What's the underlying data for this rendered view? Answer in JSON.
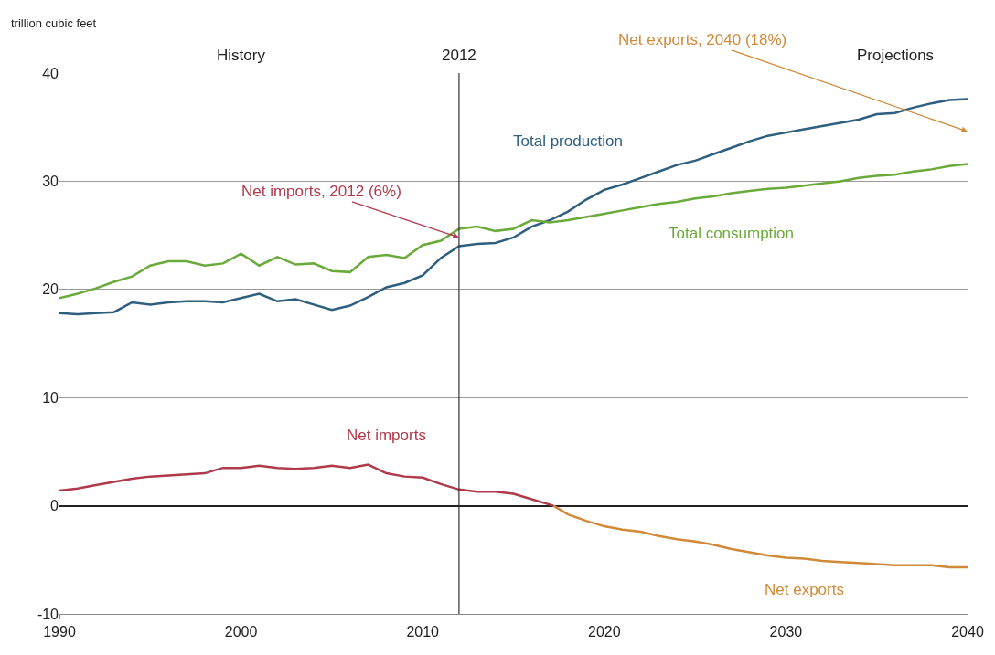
{
  "chart_data": {
    "type": "line",
    "ylabel": "trillion cubic feet",
    "xlim": [
      1990,
      2040
    ],
    "xticks": [
      1990,
      2000,
      2010,
      2020,
      2030,
      2040
    ],
    "ylim": [
      -10,
      40
    ],
    "yticks": [
      -10,
      0,
      10,
      20,
      30,
      40
    ],
    "grid": "y",
    "legend": false,
    "series": [
      {
        "name": "Total production",
        "color": "#2e5f7f",
        "x": [
          1990,
          1991,
          1992,
          1993,
          1994,
          1995,
          1996,
          1997,
          1998,
          1999,
          2000,
          2001,
          2002,
          2003,
          2004,
          2005,
          2006,
          2007,
          2008,
          2009,
          2010,
          2011,
          2012,
          2013,
          2014,
          2015,
          2016,
          2017,
          2018,
          2019,
          2020,
          2021,
          2022,
          2023,
          2024,
          2025,
          2026,
          2027,
          2028,
          2029,
          2030,
          2031,
          2032,
          2033,
          2034,
          2035,
          2036,
          2037,
          2038,
          2039,
          2040
        ],
        "values": [
          17.8,
          17.7,
          17.8,
          17.9,
          18.8,
          18.6,
          18.8,
          18.9,
          18.9,
          18.8,
          19.2,
          19.6,
          18.9,
          19.1,
          18.6,
          18.1,
          18.5,
          19.3,
          20.2,
          20.6,
          21.3,
          22.9,
          24.0,
          24.2,
          24.3,
          24.8,
          25.8,
          26.4,
          27.2,
          28.3,
          29.2,
          29.7,
          30.3,
          30.9,
          31.5,
          31.9,
          32.5,
          33.1,
          33.7,
          34.2,
          34.5,
          34.8,
          35.1,
          35.4,
          35.7,
          36.2,
          36.3,
          36.8,
          37.2,
          37.5,
          37.6
        ]
      },
      {
        "name": "Total consumption",
        "color": "#6aaa3a",
        "x": [
          1990,
          1991,
          1992,
          1993,
          1994,
          1995,
          1996,
          1997,
          1998,
          1999,
          2000,
          2001,
          2002,
          2003,
          2004,
          2005,
          2006,
          2007,
          2008,
          2009,
          2010,
          2011,
          2012,
          2013,
          2014,
          2015,
          2016,
          2017,
          2018,
          2019,
          2020,
          2021,
          2022,
          2023,
          2024,
          2025,
          2026,
          2027,
          2028,
          2029,
          2030,
          2031,
          2032,
          2033,
          2034,
          2035,
          2036,
          2037,
          2038,
          2039,
          2040
        ],
        "values": [
          19.2,
          19.6,
          20.1,
          20.7,
          21.2,
          22.2,
          22.6,
          22.6,
          22.2,
          22.4,
          23.3,
          22.2,
          23.0,
          22.3,
          22.4,
          21.7,
          21.6,
          23.0,
          23.2,
          22.9,
          24.1,
          24.5,
          25.6,
          25.8,
          25.4,
          25.6,
          26.4,
          26.2,
          26.4,
          26.7,
          27.0,
          27.3,
          27.6,
          27.9,
          28.1,
          28.4,
          28.6,
          28.9,
          29.1,
          29.3,
          29.4,
          29.6,
          29.8,
          30.0,
          30.3,
          30.5,
          30.6,
          30.9,
          31.1,
          31.4,
          31.6
        ]
      },
      {
        "name": "Net imports",
        "color": "#b03a4c",
        "x": [
          1990,
          1991,
          1992,
          1993,
          1994,
          1995,
          1996,
          1997,
          1998,
          1999,
          2000,
          2001,
          2002,
          2003,
          2004,
          2005,
          2006,
          2007,
          2008,
          2009,
          2010,
          2011,
          2012,
          2013,
          2014,
          2015,
          2016,
          2017,
          2017.2
        ],
        "values": [
          1.4,
          1.6,
          1.9,
          2.2,
          2.5,
          2.7,
          2.8,
          2.9,
          3.0,
          3.5,
          3.5,
          3.7,
          3.5,
          3.4,
          3.5,
          3.7,
          3.5,
          3.8,
          3.0,
          2.7,
          2.6,
          2.0,
          1.5,
          1.3,
          1.3,
          1.1,
          0.6,
          0.1,
          0
        ]
      },
      {
        "name": "Net exports",
        "color": "#d08a3a",
        "x": [
          2017.2,
          2018,
          2019,
          2020,
          2021,
          2022,
          2023,
          2024,
          2025,
          2026,
          2027,
          2028,
          2029,
          2030,
          2031,
          2032,
          2033,
          2034,
          2035,
          2036,
          2037,
          2038,
          2039,
          2040
        ],
        "values": [
          0,
          -0.8,
          -1.4,
          -1.9,
          -2.2,
          -2.4,
          -2.8,
          -3.1,
          -3.3,
          -3.6,
          -4.0,
          -4.3,
          -4.6,
          -4.8,
          -4.9,
          -5.1,
          -5.2,
          -5.3,
          -5.4,
          -5.5,
          -5.5,
          -5.5,
          -5.7,
          -5.7
        ]
      }
    ],
    "ref_lines": [
      {
        "axis": "x",
        "value": 2012,
        "label": "2012",
        "color": "#333333"
      }
    ],
    "annotations": [
      "History",
      "Projections",
      {
        "text": "Net imports, 2012 (6%)",
        "x": 2012,
        "y": 24.8
      },
      "Net exports, 2040 (18%)"
    ]
  }
}
